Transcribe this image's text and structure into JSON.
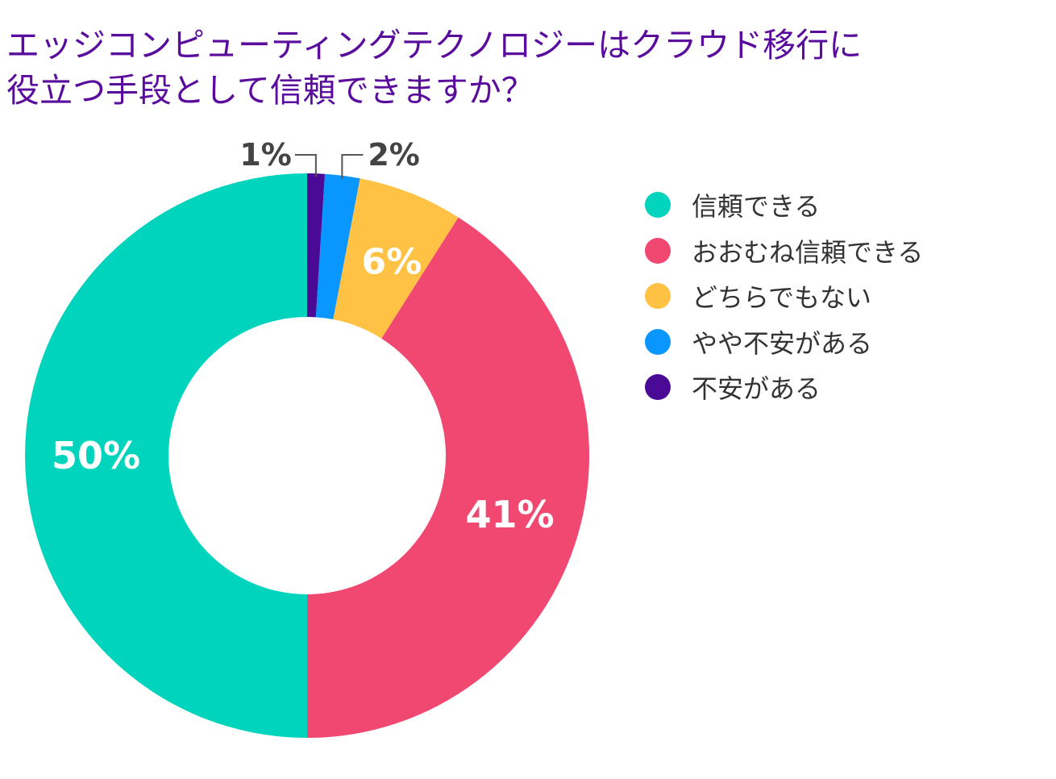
{
  "title_lines": [
    "エッジコンピューティングテクノロジーはクラウド移行に",
    "役立つ手段として信頼できますか？"
  ],
  "chart_data": {
    "type": "pie",
    "donut": true,
    "title": "エッジコンピューティングテクノロジーはクラウド移行に役立つ手段として信頼できますか？",
    "legend_position": "right",
    "slices": [
      {
        "label": "信頼できる",
        "value": 50,
        "display": "50%",
        "color": "#00d4bc"
      },
      {
        "label": "おおむね信頼できる",
        "value": 41,
        "display": "41%",
        "color": "#f04870"
      },
      {
        "label": "どちらでもない",
        "value": 6,
        "display": "6%",
        "color": "#ffc244"
      },
      {
        "label": "やや不安がある",
        "value": 2,
        "display": "2%",
        "color": "#0a96ff"
      },
      {
        "label": "不安がある",
        "value": 1,
        "display": "1%",
        "color": "#4a0a96"
      }
    ]
  }
}
